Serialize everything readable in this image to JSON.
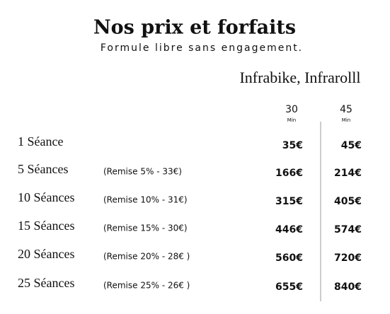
{
  "header": {
    "title": "Nos prix et forfaits",
    "subtitle": "Formule libre sans engagement."
  },
  "table": {
    "group_header": "Infrabike, Infrarolll",
    "columns": [
      {
        "duration": "30",
        "unit": "Min"
      },
      {
        "duration": "45",
        "unit": "Min"
      }
    ],
    "rows": [
      {
        "label": "1 Séance",
        "prices": [
          "35€",
          "45€"
        ]
      },
      {
        "label": "5 Séances",
        "discount": "(Remise 5% - 33€)",
        "prices": [
          "166€",
          "214€"
        ]
      },
      {
        "label": "10 Séances",
        "discount": "(Remise 10% - 31€)",
        "prices": [
          "315€",
          "405€"
        ]
      },
      {
        "label": "15 Séances",
        "discount": "(Remise 15% - 30€)",
        "prices": [
          "446€",
          "574€"
        ]
      },
      {
        "label": "20 Séances",
        "discount": "(Remise 20% - 28€ )",
        "prices": [
          "560€",
          "720€"
        ]
      },
      {
        "label": "25 Séances",
        "discount": "(Remise 25% - 26€ )",
        "prices": [
          "655€",
          "840€"
        ]
      }
    ]
  }
}
